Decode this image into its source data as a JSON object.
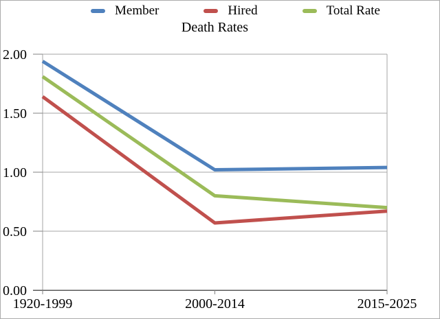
{
  "chart_data": {
    "type": "line",
    "title": "Death Rates",
    "categories": [
      "1920-1999",
      "2000-2014",
      "2015-2025"
    ],
    "series": [
      {
        "name": "Member",
        "color": "#4F81BD",
        "values": [
          1.94,
          1.02,
          1.04
        ]
      },
      {
        "name": "Hired",
        "color": "#C0504D",
        "values": [
          1.64,
          0.57,
          0.67
        ]
      },
      {
        "name": "Total Rate",
        "color": "#9BBB59",
        "values": [
          1.81,
          0.8,
          0.7
        ]
      }
    ],
    "ylim": [
      0,
      2
    ],
    "y_tick_values": [
      0,
      0.5,
      1,
      1.5,
      2
    ],
    "y_tick_labels": [
      "0.00",
      "0.50",
      "1.00",
      "1.50",
      "2.00"
    ],
    "grid": true,
    "legend_position": "top",
    "colors": {
      "gridline": "#A6A6A6",
      "plot_border": "#A6A6A6",
      "axis_line": "#595959",
      "tick": "#808080",
      "frame_border": "#ABABAB",
      "text": "#000000"
    }
  }
}
